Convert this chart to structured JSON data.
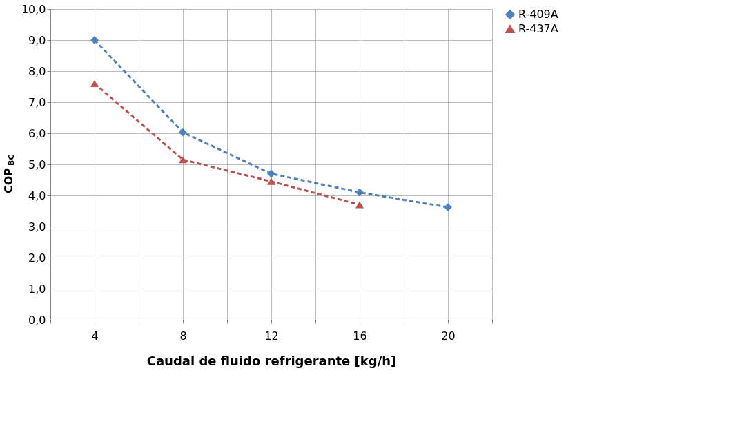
{
  "chart_data": {
    "type": "line",
    "xlabel": "Caudal de fluido refrigerante [kg/h]",
    "ylabel": "COP$_{BC}$",
    "xlim": [
      2,
      22
    ],
    "xticks": [
      {
        "value": 2,
        "label": null
      },
      4,
      {
        "value": 6,
        "label": null
      },
      8,
      {
        "value": 10,
        "label": null
      },
      12,
      {
        "value": 14,
        "label": null
      },
      16,
      {
        "value": 18,
        "label": null
      },
      20,
      {
        "value": 22,
        "label": null
      }
    ],
    "ylim": [
      0,
      10
    ],
    "yticks": [
      {
        "value": 0,
        "label": "0,0"
      },
      {
        "value": 1,
        "label": "1,0"
      },
      {
        "value": 2,
        "label": "2,0"
      },
      {
        "value": 3,
        "label": "3,0"
      },
      {
        "value": 4,
        "label": "4,0"
      },
      {
        "value": 5,
        "label": "5,0"
      },
      {
        "value": 6,
        "label": "6,0"
      },
      {
        "value": 7,
        "label": "7,0"
      },
      {
        "value": 8,
        "label": "8,0"
      },
      {
        "value": 9,
        "label": "9,0"
      },
      {
        "value": 10,
        "label": "10,0"
      }
    ],
    "grid": true,
    "legend": "right",
    "line_style": "dashed",
    "series": [
      {
        "name": "R-409A",
        "color": "#4f81bd",
        "marker": "diamond",
        "x": [
          4,
          8,
          12,
          16,
          20
        ],
        "values": [
          9.0,
          6.03,
          4.7,
          4.1,
          3.62
        ]
      },
      {
        "name": "R-437A",
        "color": "#c0504d",
        "marker": "triangle",
        "x": [
          4,
          8,
          12,
          16
        ],
        "values": [
          7.6,
          5.15,
          4.45,
          3.7
        ]
      }
    ]
  }
}
